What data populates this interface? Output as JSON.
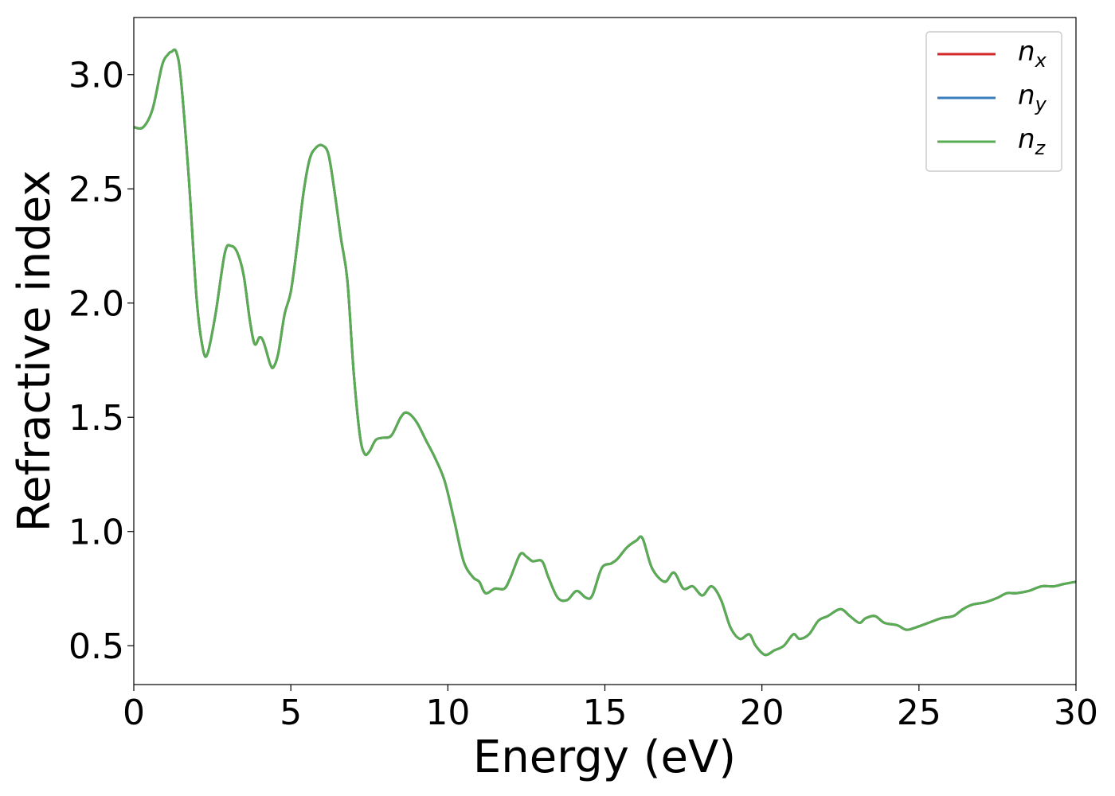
{
  "chart_data": {
    "type": "line",
    "title": "",
    "xlabel": "Energy (eV)",
    "ylabel": "Refractive index",
    "xlim": [
      0,
      30
    ],
    "ylim": [
      0.33,
      3.25
    ],
    "xticks": [
      0,
      5,
      10,
      15,
      20,
      25,
      30
    ],
    "xtick_labels": [
      "0",
      "5",
      "10",
      "15",
      "20",
      "25",
      "30"
    ],
    "yticks": [
      0.5,
      1.0,
      1.5,
      2.0,
      2.5,
      3.0
    ],
    "ytick_labels": [
      "0.5",
      "1.0",
      "1.5",
      "2.0",
      "2.5",
      "3.0"
    ],
    "grid": false,
    "legend_position": "top-right",
    "series": [
      {
        "name": "x",
        "color": "#d62728",
        "values_same_as": "nz"
      },
      {
        "name": "y",
        "color": "#3a7dbd",
        "values_same_as": "nz"
      },
      {
        "name": "z",
        "color": "#5aac52",
        "x": [
          0,
          0.3,
          0.6,
          0.9,
          1.1,
          1.2,
          1.35,
          1.5,
          1.75,
          2.0,
          2.2,
          2.35,
          2.6,
          2.9,
          3.1,
          3.3,
          3.5,
          3.7,
          3.85,
          4.0,
          4.1,
          4.2,
          4.35,
          4.45,
          4.6,
          4.8,
          5.0,
          5.2,
          5.4,
          5.6,
          5.8,
          6.0,
          6.2,
          6.4,
          6.6,
          6.8,
          7.0,
          7.2,
          7.35,
          7.5,
          7.7,
          7.9,
          8.2,
          8.5,
          8.7,
          9.0,
          9.3,
          9.6,
          9.9,
          10.2,
          10.5,
          10.8,
          11.0,
          11.2,
          11.5,
          11.8,
          12.0,
          12.3,
          12.5,
          12.7,
          13.0,
          13.2,
          13.5,
          13.8,
          14.1,
          14.4,
          14.6,
          14.9,
          15.2,
          15.4,
          15.7,
          16.0,
          16.2,
          16.5,
          16.9,
          17.2,
          17.5,
          17.8,
          18.1,
          18.4,
          18.7,
          19.0,
          19.3,
          19.6,
          19.8,
          20.1,
          20.4,
          20.7,
          21.0,
          21.2,
          21.5,
          21.8,
          22.1,
          22.5,
          22.8,
          23.1,
          23.3,
          23.6,
          23.9,
          24.3,
          24.6,
          24.9,
          25.3,
          25.7,
          26.1,
          26.4,
          26.7,
          27.1,
          27.5,
          27.8,
          28.1,
          28.5,
          28.9,
          29.3,
          29.6,
          30.0
        ],
        "values": [
          2.77,
          2.77,
          2.85,
          3.04,
          3.09,
          3.1,
          3.1,
          2.98,
          2.55,
          2.02,
          1.8,
          1.78,
          1.95,
          2.22,
          2.25,
          2.22,
          2.12,
          1.92,
          1.82,
          1.85,
          1.84,
          1.8,
          1.73,
          1.72,
          1.78,
          1.95,
          2.05,
          2.25,
          2.48,
          2.63,
          2.68,
          2.69,
          2.65,
          2.48,
          2.28,
          2.1,
          1.7,
          1.42,
          1.34,
          1.35,
          1.4,
          1.41,
          1.42,
          1.5,
          1.52,
          1.48,
          1.4,
          1.32,
          1.22,
          1.05,
          0.87,
          0.8,
          0.78,
          0.73,
          0.75,
          0.75,
          0.8,
          0.9,
          0.89,
          0.87,
          0.87,
          0.8,
          0.71,
          0.7,
          0.74,
          0.71,
          0.72,
          0.84,
          0.86,
          0.88,
          0.93,
          0.96,
          0.97,
          0.84,
          0.78,
          0.82,
          0.75,
          0.76,
          0.72,
          0.76,
          0.7,
          0.58,
          0.53,
          0.55,
          0.5,
          0.46,
          0.48,
          0.5,
          0.55,
          0.53,
          0.55,
          0.61,
          0.63,
          0.66,
          0.63,
          0.6,
          0.62,
          0.63,
          0.6,
          0.59,
          0.57,
          0.58,
          0.6,
          0.62,
          0.63,
          0.66,
          0.68,
          0.69,
          0.71,
          0.73,
          0.73,
          0.74,
          0.76,
          0.76,
          0.77,
          0.78
        ]
      }
    ]
  },
  "legend": {
    "items": [
      {
        "base": "n",
        "sub": "x",
        "color": "#d62728"
      },
      {
        "base": "n",
        "sub": "y",
        "color": "#3a7dbd"
      },
      {
        "base": "n",
        "sub": "z",
        "color": "#5aac52"
      }
    ]
  }
}
